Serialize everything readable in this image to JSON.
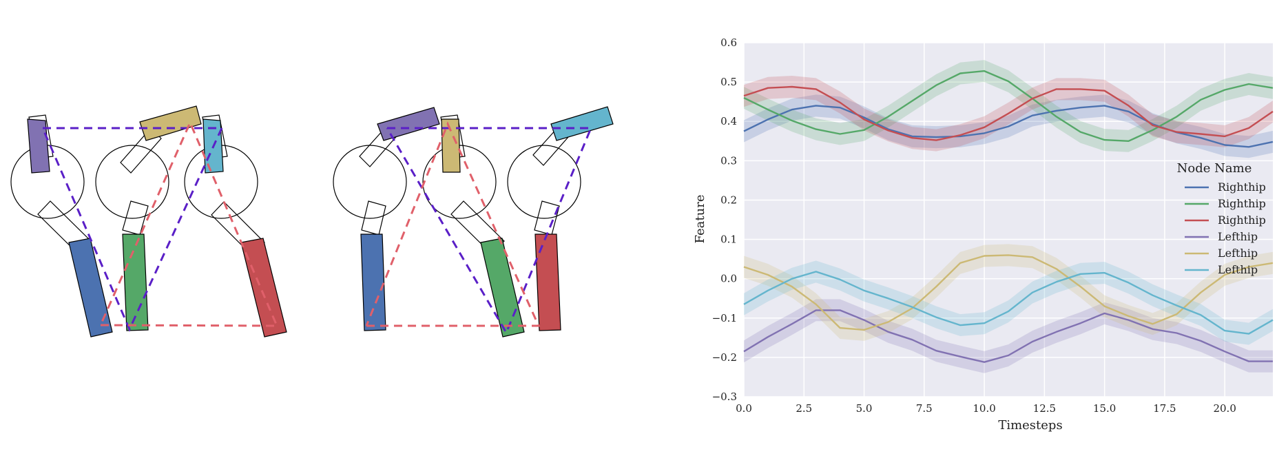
{
  "legend": {
    "title": "Node Name",
    "entries": [
      {
        "label": "Righthip",
        "color": "#4C72B0"
      },
      {
        "label": "Righthip",
        "color": "#55A868"
      },
      {
        "label": "Righthip",
        "color": "#C44E52"
      },
      {
        "label": "Lefthip",
        "color": "#8172B2"
      },
      {
        "label": "Lefthip",
        "color": "#CCB974"
      },
      {
        "label": "Lefthip",
        "color": "#64B5CD"
      }
    ]
  },
  "colors": {
    "plot_background": "#EAEAF2",
    "grid": "#FFFFFF",
    "dashed_purple": "#5A1FC7",
    "dashed_red": "#E0606A"
  },
  "chart_data": {
    "type": "line",
    "xlabel": "Timesteps",
    "ylabel": "Feature",
    "xlim": [
      0,
      22
    ],
    "ylim": [
      -0.3,
      0.6
    ],
    "xticks": [
      0,
      2.5,
      5,
      7.5,
      10,
      12.5,
      15,
      17.5,
      20
    ],
    "xtick_labels": [
      "0.0",
      "2.5",
      "5.0",
      "7.5",
      "10.0",
      "12.5",
      "15.0",
      "17.5",
      "20.0"
    ],
    "yticks": [
      -0.3,
      -0.2,
      -0.1,
      0,
      0.1,
      0.2,
      0.3,
      0.4,
      0.5,
      0.6
    ],
    "ytick_labels": [
      "−0.3",
      "−0.2",
      "−0.1",
      "0.0",
      "0.1",
      "0.2",
      "0.3",
      "0.4",
      "0.5",
      "0.6"
    ],
    "grid": true,
    "legend_position": "right",
    "x": [
      0,
      1,
      2,
      3,
      4,
      5,
      6,
      7,
      8,
      9,
      10,
      11,
      12,
      13,
      14,
      15,
      16,
      17,
      18,
      19,
      20,
      21,
      22
    ],
    "series": [
      {
        "name": "Righthip",
        "color": "#4C72B0",
        "band": 0.028,
        "values": [
          0.375,
          0.405,
          0.43,
          0.44,
          0.435,
          0.41,
          0.38,
          0.362,
          0.36,
          0.362,
          0.37,
          0.387,
          0.415,
          0.427,
          0.435,
          0.44,
          0.425,
          0.393,
          0.372,
          0.358,
          0.34,
          0.335,
          0.348
        ]
      },
      {
        "name": "Righthip",
        "color": "#55A868",
        "band": 0.028,
        "values": [
          0.46,
          0.43,
          0.402,
          0.38,
          0.368,
          0.378,
          0.412,
          0.452,
          0.492,
          0.522,
          0.528,
          0.502,
          0.458,
          0.412,
          0.373,
          0.353,
          0.35,
          0.378,
          0.412,
          0.455,
          0.48,
          0.495,
          0.485
        ]
      },
      {
        "name": "Righthip",
        "color": "#C44E52",
        "band": 0.028,
        "values": [
          0.465,
          0.485,
          0.488,
          0.482,
          0.448,
          0.405,
          0.377,
          0.358,
          0.352,
          0.365,
          0.385,
          0.42,
          0.458,
          0.482,
          0.482,
          0.478,
          0.44,
          0.39,
          0.373,
          0.368,
          0.362,
          0.383,
          0.425
        ]
      },
      {
        "name": "Lefthip",
        "color": "#8172B2",
        "band": 0.028,
        "values": [
          -0.185,
          -0.148,
          -0.115,
          -0.08,
          -0.08,
          -0.105,
          -0.135,
          -0.155,
          -0.183,
          -0.198,
          -0.212,
          -0.195,
          -0.16,
          -0.135,
          -0.113,
          -0.088,
          -0.105,
          -0.128,
          -0.138,
          -0.158,
          -0.185,
          -0.21,
          -0.21
        ]
      },
      {
        "name": "Lefthip",
        "color": "#CCB974",
        "band": 0.028,
        "values": [
          0.03,
          0.01,
          -0.02,
          -0.065,
          -0.125,
          -0.13,
          -0.11,
          -0.075,
          -0.02,
          0.04,
          0.058,
          0.06,
          0.055,
          0.025,
          -0.02,
          -0.07,
          -0.095,
          -0.115,
          -0.09,
          -0.035,
          0.01,
          0.03,
          0.04
        ]
      },
      {
        "name": "Lefthip",
        "color": "#64B5CD",
        "band": 0.028,
        "values": [
          -0.065,
          -0.03,
          0,
          0.018,
          -0.002,
          -0.03,
          -0.05,
          -0.072,
          -0.098,
          -0.118,
          -0.113,
          -0.083,
          -0.035,
          -0.008,
          0.012,
          0.015,
          -0.01,
          -0.042,
          -0.068,
          -0.092,
          -0.132,
          -0.14,
          -0.105
        ]
      }
    ]
  }
}
